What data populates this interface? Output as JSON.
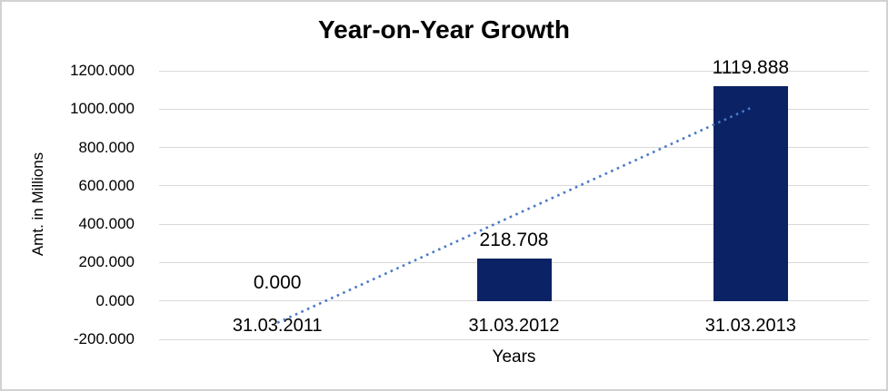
{
  "frame": {
    "background": "#FFFFFF",
    "border_color": "#D2D2D2"
  },
  "chart_data": {
    "type": "bar",
    "title": "Year-on-Year Growth",
    "xlabel": "Years",
    "ylabel": "Amt. in Millions",
    "categories": [
      "31.03.2011",
      "31.03.2012",
      "31.03.2013"
    ],
    "values": [
      0,
      218.708,
      1119.888
    ],
    "data_labels": [
      "0.000",
      "218.708",
      "1119.888"
    ],
    "ylim": [
      -200,
      1200
    ],
    "ytick_step": 200,
    "ytick_values": [
      1200,
      1000,
      800,
      600,
      400,
      200,
      0,
      -200
    ],
    "ytick_labels": [
      "1200.000",
      "1000.000",
      "800.000",
      "600.000",
      "400.000",
      "200.000",
      "0.000",
      "-200.000"
    ],
    "grid": true,
    "legend": "none",
    "bar_color": "#0B2265",
    "gridline_color": "#D9D9D9",
    "trendline": {
      "type": "linear",
      "style": "dotted",
      "color": "#4A79C6",
      "start": {
        "category": "31.03.2011",
        "value": -114
      },
      "end": {
        "category": "31.03.2013",
        "value": 1006
      }
    }
  }
}
